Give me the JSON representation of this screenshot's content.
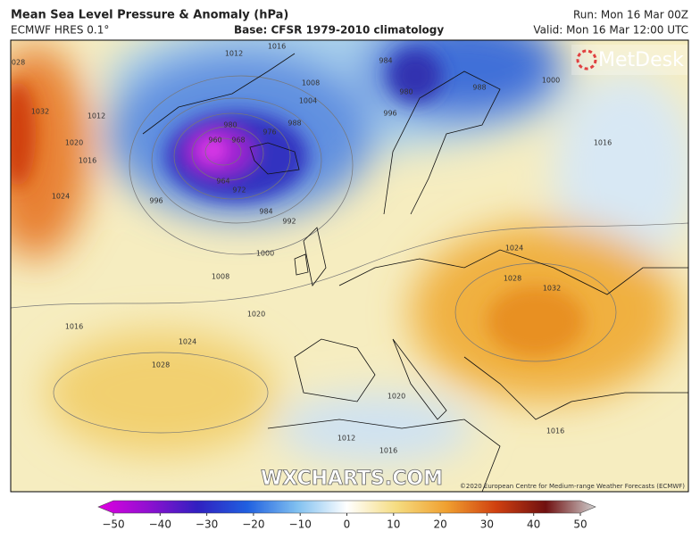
{
  "header": {
    "title": "Mean Sea Level Pressure & Anomaly (hPa)",
    "model": "ECMWF HRES 0.1°",
    "base": "Base: CFSR 1979-2010 climatology",
    "run": "Run: Mon 16 Mar 00Z",
    "valid": "Valid: Mon 16 Mar 12:00 UTC"
  },
  "logo": "MetDesk",
  "watermark": "WXCHARTS.COM",
  "copyright": "©2020 European Centre for Medium-range Weather Forecasts (ECMWF)",
  "isobar_labels": [
    "1028",
    "1032",
    "1020",
    "1016",
    "1024",
    "1012",
    "1012",
    "1016",
    "1008",
    "1004",
    "984",
    "980",
    "988",
    "1000",
    "996",
    "980",
    "960",
    "968",
    "976",
    "988",
    "964",
    "972",
    "984",
    "992",
    "1000",
    "996",
    "1008",
    "1020",
    "1016",
    "1024",
    "1028",
    "1024",
    "1028",
    "1032",
    "1020",
    "1016",
    "1016",
    "1012",
    "1016"
  ],
  "colorbar": {
    "lim": [
      -50,
      50
    ],
    "ticks": [
      {
        "value": -50,
        "label": "−50"
      },
      {
        "value": -40,
        "label": "−40"
      },
      {
        "value": -30,
        "label": "−30"
      },
      {
        "value": -20,
        "label": "−20"
      },
      {
        "value": -10,
        "label": "−10"
      },
      0,
      10,
      20,
      30,
      40,
      50
    ]
  }
}
